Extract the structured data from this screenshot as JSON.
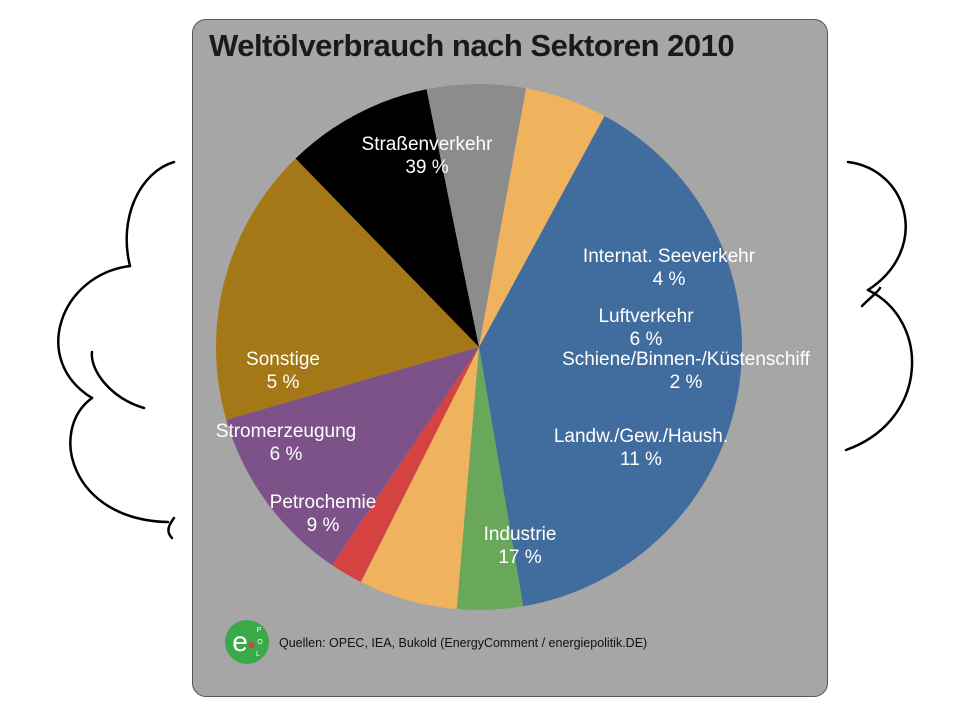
{
  "chart_data": {
    "type": "pie",
    "title": "Weltölverbrauch nach Sektoren 2010",
    "slices": [
      {
        "label": "Straßenverkehr",
        "value": 39,
        "value_label": "39 %",
        "color": "#416c9e"
      },
      {
        "label": "Internat. Seeverkehr",
        "value": 4,
        "value_label": "4 %",
        "color": "#69a85a"
      },
      {
        "label": "Luftverkehr",
        "value": 6,
        "value_label": "6 %",
        "color": "#f0b35d"
      },
      {
        "label": "Schiene/Binnen-/Küstenschiff",
        "value": 2,
        "value_label": "2 %",
        "color": "#d54242"
      },
      {
        "label": "Landw./Gew./Haush.",
        "value": 11,
        "value_label": "11 %",
        "color": "#7d5288"
      },
      {
        "label": "Industrie",
        "value": 17,
        "value_label": "17 %",
        "color": "#a47816"
      },
      {
        "label": "Petrochemie",
        "value": 9,
        "value_label": "9 %",
        "color": "#000000"
      },
      {
        "label": "Stromerzeugung",
        "value": 6,
        "value_label": "6 %",
        "color": "#8c8c8c"
      },
      {
        "label": "Sonstige",
        "value": 5,
        "value_label": "5 %",
        "color": "#f0b35d"
      }
    ]
  },
  "footer": {
    "source": "Quellen: OPEC, IEA, Bukold (EnergyComment / energiepolitik.DE)",
    "logo_letter": "e",
    "logo_sub": [
      "P",
      "O",
      "L"
    ],
    "logo_color": "#39a94a"
  }
}
